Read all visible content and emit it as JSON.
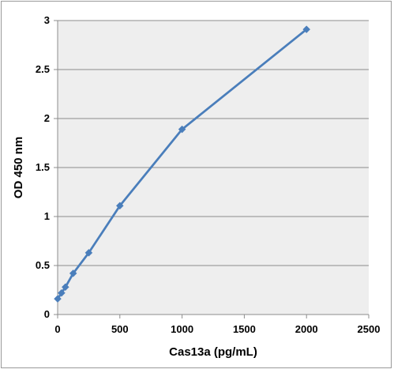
{
  "chart_data": {
    "type": "line",
    "title": "",
    "xlabel": "Cas13a (pg/mL)",
    "ylabel": "OD 450 nm",
    "xlim": [
      0,
      2500
    ],
    "ylim": [
      0,
      3
    ],
    "x_ticks": [
      "0",
      "500",
      "1000",
      "1500",
      "2000",
      "2500"
    ],
    "y_ticks": [
      "0",
      "0.5",
      "1",
      "1.5",
      "2",
      "2.5",
      "3"
    ],
    "grid": "horizontal",
    "legend": "none",
    "series": [
      {
        "color": "#4a7ebb",
        "marker": "diamond",
        "points": [
          {
            "x": 0,
            "y": 0.16
          },
          {
            "x": 31.25,
            "y": 0.22
          },
          {
            "x": 62.5,
            "y": 0.28
          },
          {
            "x": 125,
            "y": 0.42
          },
          {
            "x": 250,
            "y": 0.63
          },
          {
            "x": 500,
            "y": 1.11
          },
          {
            "x": 1000,
            "y": 1.89
          },
          {
            "x": 2000,
            "y": 2.91
          }
        ]
      }
    ]
  }
}
